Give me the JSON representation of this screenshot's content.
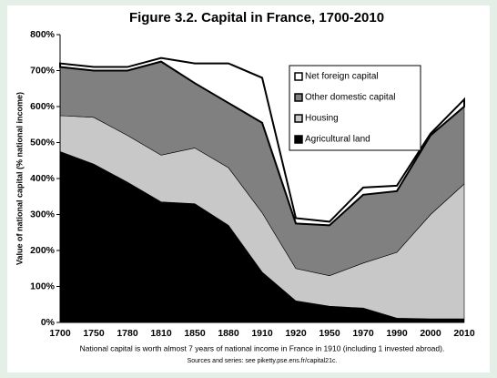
{
  "chart_data": {
    "type": "stacked-area",
    "title": "Figure 3.2. Capital in France, 1700-2010",
    "y_label": "Value of national capital (% national income)",
    "notes": [
      "National capital is worth almost 7 years of national income in France in 1910 (including 1 invested abroad).",
      "Sources and series: see piketty.pse.ens.fr/capital21c."
    ],
    "categories": [
      "1700",
      "1750",
      "1780",
      "1810",
      "1850",
      "1880",
      "1910",
      "1920",
      "1950",
      "1970",
      "1990",
      "2000",
      "2010"
    ],
    "series": [
      {
        "name": "Agricultural land",
        "color": "#000000",
        "values": [
          475,
          440,
          390,
          335,
          330,
          270,
          140,
          60,
          45,
          40,
          12,
          10,
          10
        ]
      },
      {
        "name": "Housing",
        "color": "#c8c8c8",
        "values": [
          100,
          130,
          130,
          130,
          155,
          160,
          165,
          90,
          85,
          125,
          183,
          290,
          375
        ]
      },
      {
        "name": "Other domestic capital",
        "color": "#808080",
        "values": [
          135,
          130,
          180,
          260,
          180,
          180,
          250,
          125,
          140,
          190,
          170,
          220,
          215
        ]
      },
      {
        "name": "Net foreign capital",
        "color": "#ffffff",
        "values": [
          10,
          10,
          10,
          10,
          55,
          110,
          125,
          15,
          10,
          20,
          15,
          5,
          20
        ]
      }
    ],
    "ylim": [
      0,
      800
    ],
    "yticks": [
      {
        "value": 0,
        "label": "0%"
      },
      {
        "value": 100,
        "label": "100%"
      },
      {
        "value": 200,
        "label": "200%"
      },
      {
        "value": 300,
        "label": "300%"
      },
      {
        "value": 400,
        "label": "400%"
      },
      {
        "value": 500,
        "label": "500%"
      },
      {
        "value": 600,
        "label": "600%"
      },
      {
        "value": 700,
        "label": "700%"
      },
      {
        "value": 800,
        "label": "800%"
      }
    ],
    "legend": "top-right"
  }
}
